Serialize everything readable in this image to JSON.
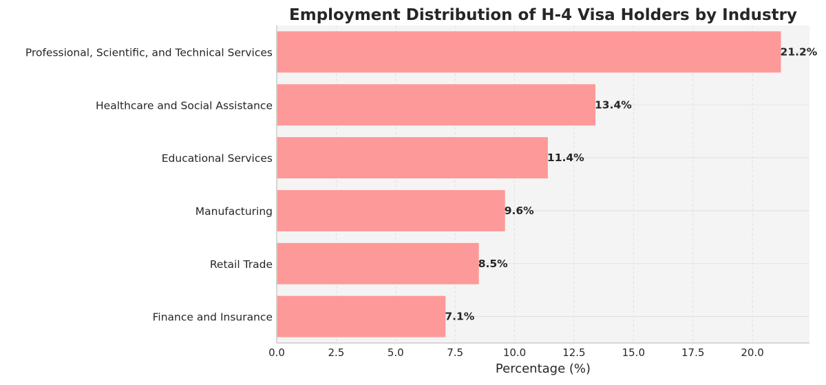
{
  "chart_data": {
    "type": "bar",
    "orientation": "horizontal",
    "title": "Employment Distribution of H-4 Visa Holders by Industry",
    "xlabel": "Percentage (%)",
    "ylabel": "",
    "categories": [
      "Professional, Scientific, and Technical Services",
      "Healthcare and Social Assistance",
      "Educational Services",
      "Manufacturing",
      "Retail Trade",
      "Finance and Insurance"
    ],
    "values": [
      21.2,
      13.4,
      11.4,
      9.6,
      8.5,
      7.1
    ],
    "data_labels": [
      "21.2%",
      "13.4%",
      "11.4%",
      "9.6%",
      "8.5%",
      "7.1%"
    ],
    "xlim": [
      0,
      22.4
    ],
    "xticks": [
      0,
      2.5,
      5,
      7.5,
      10,
      12.5,
      15,
      17.5,
      20
    ],
    "xtick_labels": [
      "0.0",
      "2.5",
      "5.0",
      "7.5",
      "10.0",
      "12.5",
      "15.0",
      "17.5",
      "20.0"
    ],
    "grid": true,
    "colors": {
      "bar": "#fe9999",
      "background": "#f4f4f4",
      "text": "#262626"
    }
  }
}
